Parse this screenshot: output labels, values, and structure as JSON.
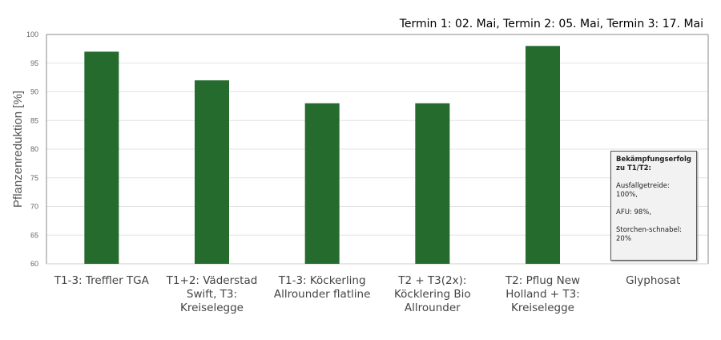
{
  "chart_data": {
    "type": "bar",
    "title": "",
    "annotation": "Termin 1: 02. Mai, Termin 2: 05. Mai, Termin 3: 17. Mai",
    "xlabel": "",
    "ylabel": "Pflanzenreduktion [%]",
    "ylim": [
      60,
      100
    ],
    "yticks": [
      60,
      65,
      70,
      75,
      80,
      85,
      90,
      95,
      100
    ],
    "grid": true,
    "categories": [
      "T1-3: Treffler TGA",
      "T1+2: Väderstad Swift, T3: Kreiselegge",
      "T1-3: Köckerling Allrounder flatline",
      "T2 + T3(2x): Köcklering Bio Allrounder",
      "T2: Pflug New Holland + T3: Kreiselegge",
      "Glyphosat"
    ],
    "values": [
      97,
      92,
      88,
      88,
      98,
      null
    ],
    "bar_color": "#256b2e",
    "textbox": {
      "heading": "Bekämpfungserfolg zu T1/T2:",
      "lines": [
        "Ausfallgetreide: 100%,",
        "AFU: 98%,",
        "Storchen-schnabel: 20%"
      ]
    }
  }
}
